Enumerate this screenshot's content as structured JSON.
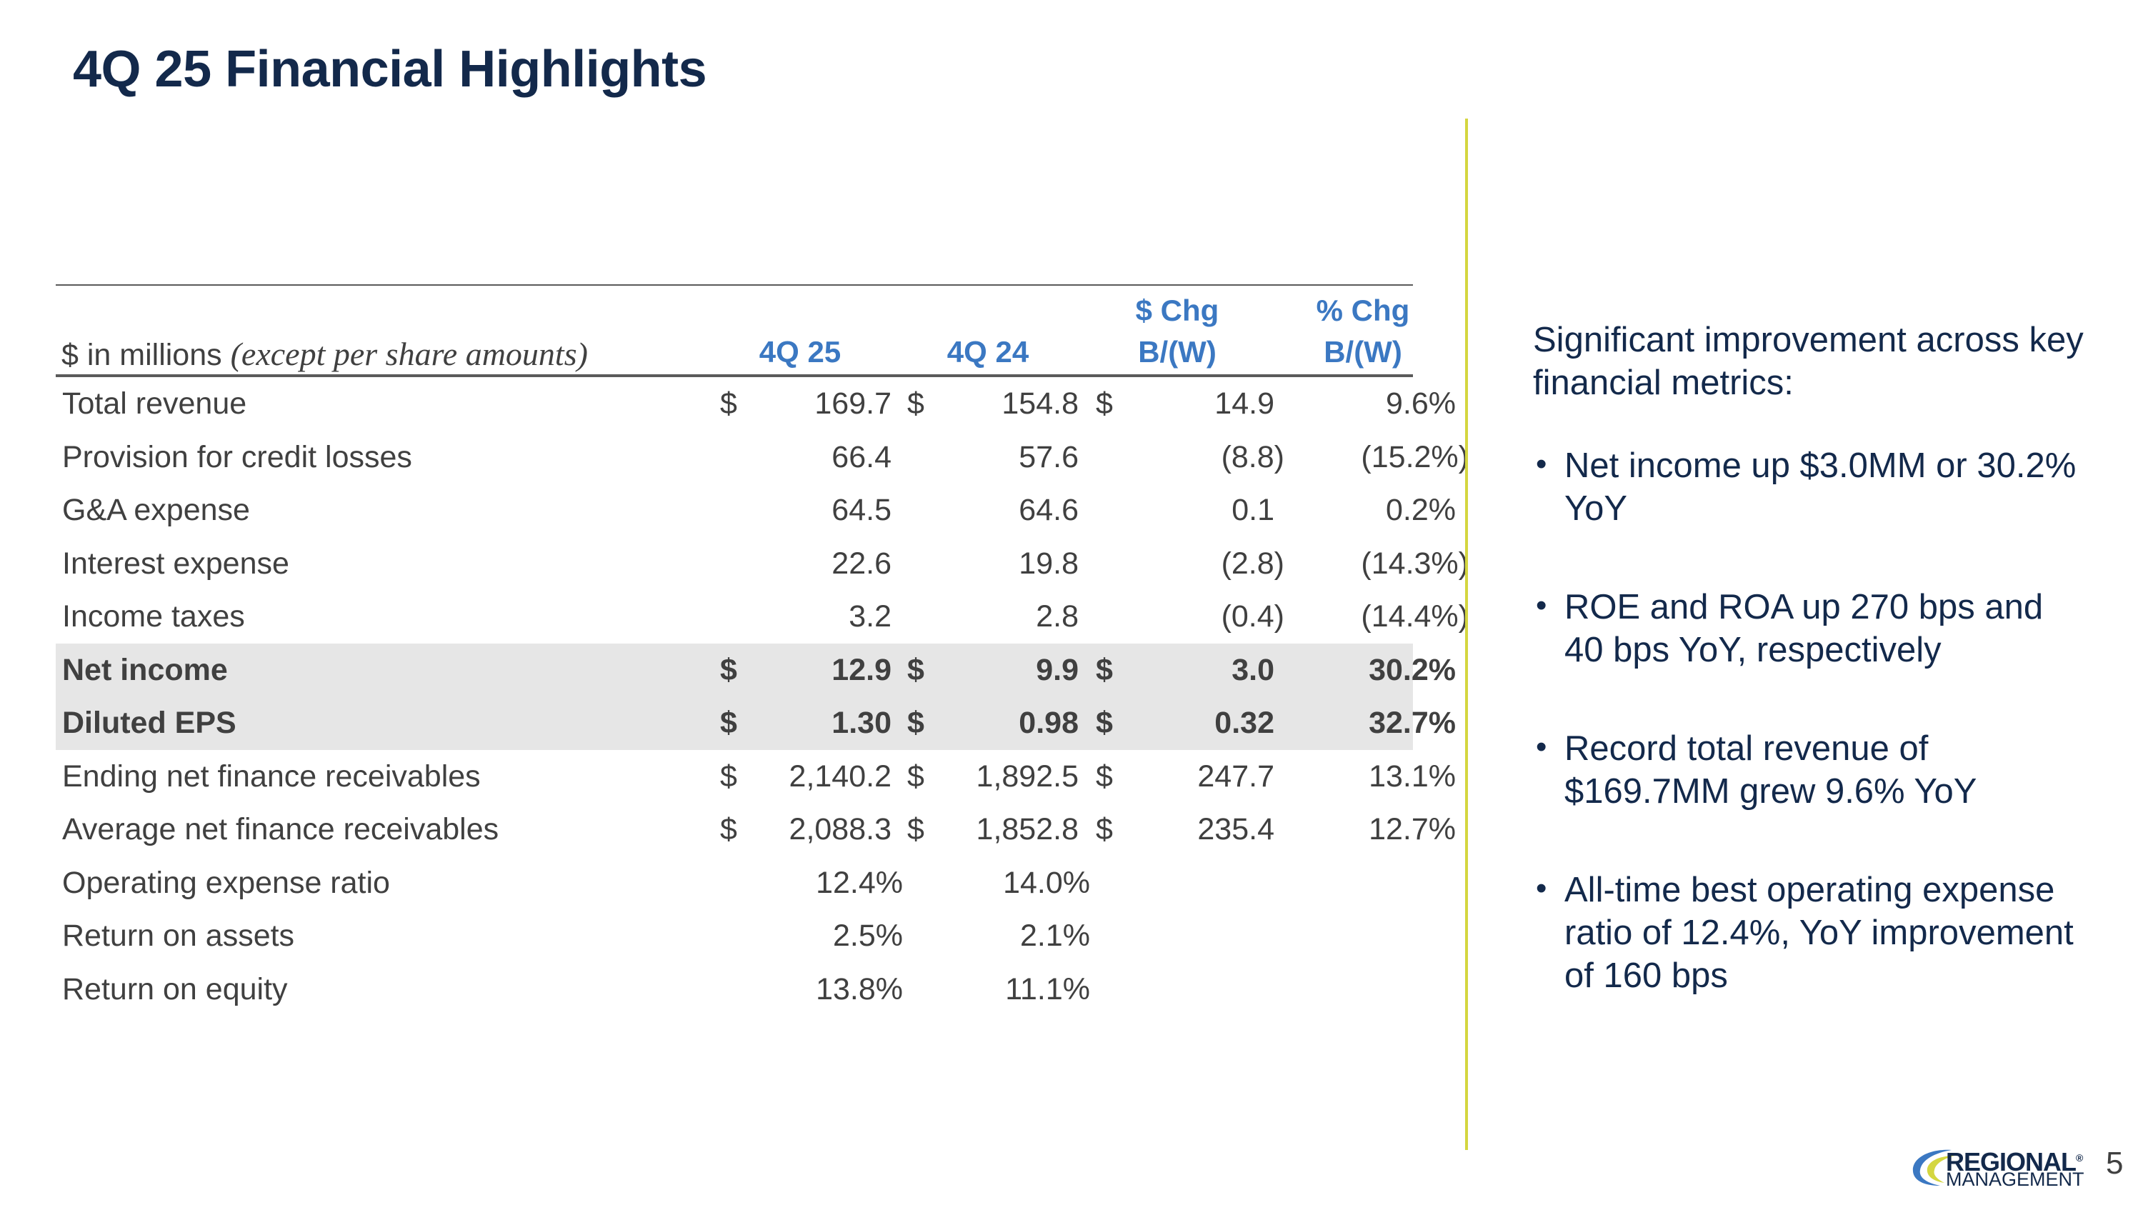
{
  "title": "4Q 25 Financial Highlights",
  "table": {
    "units_prefix": "$ in millions ",
    "units_italic": "(except per share amounts)",
    "headers": {
      "col1": "4Q 25",
      "col2": "4Q 24",
      "col3_line1": "$ Chg",
      "col3_line2": "B/(W)",
      "col4_line1": "% Chg",
      "col4_line2": "B/(W)"
    },
    "rows": [
      {
        "label": "Total revenue",
        "d1": "$",
        "v1": "169.7",
        "d2": "$",
        "v2": "154.8",
        "d3": "$",
        "v3": "14.9",
        "v4": "9.6%"
      },
      {
        "label": "Provision for credit losses",
        "d1": "",
        "v1": "66.4",
        "d2": "",
        "v2": "57.6",
        "d3": "",
        "v3": "(8.8)",
        "v4": "(15.2%)"
      },
      {
        "label": "G&A expense",
        "d1": "",
        "v1": "64.5",
        "d2": "",
        "v2": "64.6",
        "d3": "",
        "v3": "0.1",
        "v4": "0.2%"
      },
      {
        "label": "Interest expense",
        "d1": "",
        "v1": "22.6",
        "d2": "",
        "v2": "19.8",
        "d3": "",
        "v3": "(2.8)",
        "v4": "(14.3%)"
      },
      {
        "label": "Income taxes",
        "d1": "",
        "v1": "3.2",
        "d2": "",
        "v2": "2.8",
        "d3": "",
        "v3": "(0.4)",
        "v4": "(14.4%)"
      },
      {
        "label": "Net income",
        "d1": "$",
        "v1": "12.9",
        "d2": "$",
        "v2": "9.9",
        "d3": "$",
        "v3": "3.0",
        "v4": "30.2%"
      },
      {
        "label": "Diluted EPS",
        "d1": "$",
        "v1": "1.30",
        "d2": "$",
        "v2": "0.98",
        "d3": "$",
        "v3": "0.32",
        "v4": "32.7%"
      },
      {
        "label": "Ending net finance receivables",
        "d1": "$",
        "v1": "2,140.2",
        "d2": "$",
        "v2": "1,892.5",
        "d3": "$",
        "v3": "247.7",
        "v4": "13.1%"
      },
      {
        "label": "Average net finance receivables",
        "d1": "$",
        "v1": "2,088.3",
        "d2": "$",
        "v2": "1,852.8",
        "d3": "$",
        "v3": "235.4",
        "v4": "12.7%"
      },
      {
        "label": "Operating expense ratio",
        "d1": "",
        "v1": "12.4%",
        "d2": "",
        "v2": "14.0%",
        "d3": "",
        "v3": "",
        "v4": ""
      },
      {
        "label": "Return on assets",
        "d1": "",
        "v1": "2.5%",
        "d2": "",
        "v2": "2.1%",
        "d3": "",
        "v3": "",
        "v4": ""
      },
      {
        "label": "Return on equity",
        "d1": "",
        "v1": "13.8%",
        "d2": "",
        "v2": "11.1%",
        "d3": "",
        "v3": "",
        "v4": ""
      }
    ]
  },
  "sidebar": {
    "intro": "Significant improvement across key financial metrics:",
    "bullet_char": "•",
    "bullets": [
      "Net income up $3.0MM or 30.2% YoY",
      "ROE and ROA up 270 bps and 40 bps YoY, respectively",
      "Record total revenue of $169.7MM grew 9.6% YoY",
      "All-time best operating expense ratio of 12.4%, YoY improvement of 160 bps"
    ]
  },
  "logo": {
    "line1": "REGIONAL",
    "line2": "MANAGEMENT",
    "mark": "®"
  },
  "page_number": "5",
  "colors": {
    "title": "#13294b",
    "header_accent": "#3b78c2",
    "divider": "#d4d640",
    "highlight_row": "#e6e6e6",
    "body_text": "#404040",
    "logo_swoosh_blue": "#3b78c2",
    "logo_swoosh_yellow": "#d4d640"
  }
}
